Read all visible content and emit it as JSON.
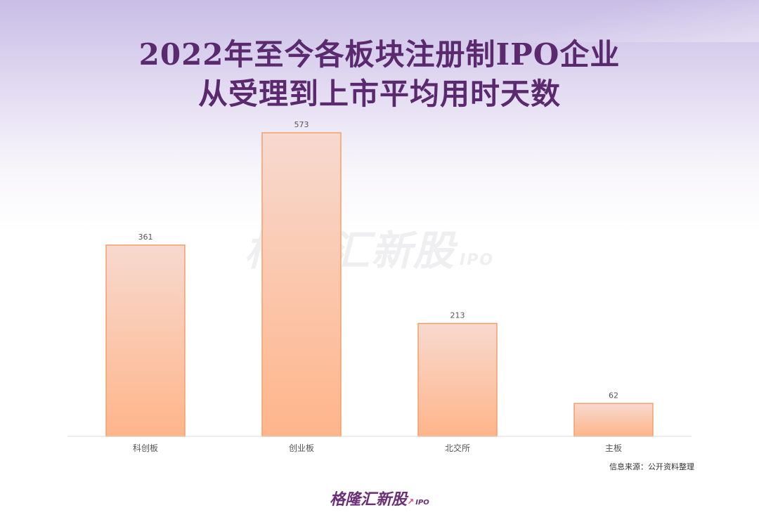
{
  "header": {
    "title_line1": "2022年至今各板块注册制IPO企业",
    "title_line2": "从受理到上市平均用时天数"
  },
  "chart_data": {
    "type": "bar",
    "categories": [
      "科创板",
      "创业板",
      "北交所",
      "主板"
    ],
    "values": [
      361,
      573,
      213,
      62
    ],
    "data_labels": [
      "361",
      "573",
      "213",
      "62"
    ],
    "ylim": [
      0,
      573
    ],
    "grid": false,
    "legend": "none",
    "bar_colors": {
      "top": "#f7d9cf",
      "bottom": "#ffb58a",
      "stroke": "#f2a06a"
    }
  },
  "watermark": {
    "text": "格隆汇新股",
    "sub": "IPO"
  },
  "footer": {
    "source": "信息来源：公开资料整理",
    "logo_text": "格隆汇新股",
    "logo_sub": "IPO",
    "logo_mark_icon": "trend-arrow-icon"
  }
}
